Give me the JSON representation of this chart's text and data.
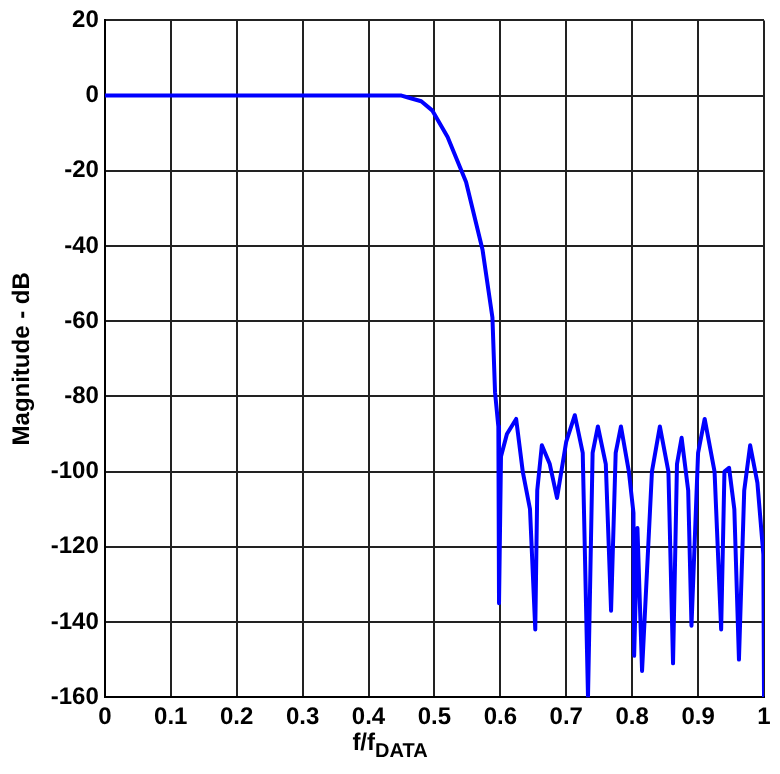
{
  "chart_data": {
    "type": "line",
    "xlabel": "f/f$_{DATA}$",
    "ylabel": "Magnitude - dB",
    "xlim": [
      0,
      1
    ],
    "ylim": [
      -160,
      20
    ],
    "xticks": [
      0,
      0.1,
      0.2,
      0.3,
      0.4,
      0.5,
      0.6,
      0.7,
      0.8,
      0.9,
      1
    ],
    "yticks": [
      -160,
      -140,
      -120,
      -100,
      -80,
      -60,
      -40,
      -20,
      0,
      20
    ],
    "grid": true,
    "legend": false,
    "marker": "none",
    "series": [
      {
        "color": "#0000ff",
        "x": [
          0,
          0.1,
          0.2,
          0.3,
          0.4,
          0.45,
          0.46,
          0.48,
          0.497,
          0.52,
          0.548,
          0.573,
          0.588,
          0.592,
          0.597,
          0.598,
          0.601,
          0.61,
          0.624,
          0.634,
          0.645,
          0.653,
          0.656,
          0.663,
          0.675,
          0.686,
          0.7,
          0.713,
          0.725,
          0.733,
          0.74,
          0.748,
          0.76,
          0.768,
          0.775,
          0.783,
          0.795,
          0.802,
          0.803,
          0.808,
          0.815,
          0.83,
          0.842,
          0.855,
          0.862,
          0.868,
          0.875,
          0.885,
          0.89,
          0.9,
          0.91,
          0.925,
          0.935,
          0.94,
          0.947,
          0.955,
          0.962,
          0.97,
          0.979,
          0.99,
          0.999,
          1
        ],
        "values": [
          0,
          0,
          0,
          0,
          0,
          0,
          -0.5,
          -1.5,
          -4,
          -11,
          -23,
          -41,
          -59,
          -79,
          -88,
          -135,
          -96,
          -90,
          -86,
          -100,
          -110,
          -142,
          -105,
          -93,
          -98,
          -107,
          -92,
          -85,
          -95,
          -160,
          -95,
          -88,
          -98,
          -137,
          -95,
          -88,
          -100,
          -111,
          -149,
          -115,
          -153,
          -100,
          -88,
          -100,
          -151,
          -98,
          -91,
          -105,
          -141,
          -95,
          -86,
          -100,
          -142,
          -100,
          -99,
          -110,
          -150,
          -105,
          -93,
          -103,
          -122,
          -160
        ]
      }
    ]
  }
}
